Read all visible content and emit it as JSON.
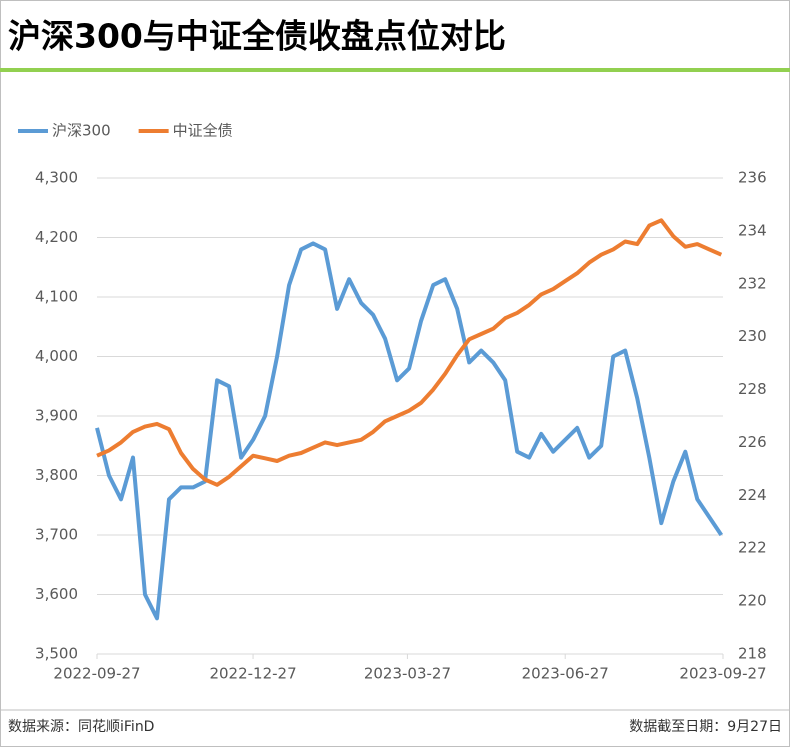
{
  "chart_data": {
    "type": "line",
    "title": "沪深300与中证全债收盘点位对比",
    "source": "数据来源：同花顺iFinD",
    "note": "数据截至日期：9月27日",
    "x": [
      "2022-09-27",
      "2022-10-04",
      "2022-10-11",
      "2022-10-18",
      "2022-10-25",
      "2022-11-01",
      "2022-11-08",
      "2022-11-15",
      "2022-11-22",
      "2022-11-29",
      "2022-12-06",
      "2022-12-13",
      "2022-12-20",
      "2022-12-27",
      "2023-01-03",
      "2023-01-10",
      "2023-01-17",
      "2023-01-24",
      "2023-01-31",
      "2023-02-07",
      "2023-02-14",
      "2023-02-21",
      "2023-02-28",
      "2023-03-07",
      "2023-03-14",
      "2023-03-21",
      "2023-03-28",
      "2023-04-04",
      "2023-04-11",
      "2023-04-18",
      "2023-04-25",
      "2023-05-02",
      "2023-05-09",
      "2023-05-16",
      "2023-05-23",
      "2023-05-30",
      "2023-06-06",
      "2023-06-13",
      "2023-06-20",
      "2023-06-27",
      "2023-07-04",
      "2023-07-11",
      "2023-07-18",
      "2023-07-25",
      "2023-08-01",
      "2023-08-08",
      "2023-08-15",
      "2023-08-22",
      "2023-08-29",
      "2023-09-05",
      "2023-09-12",
      "2023-09-19",
      "2023-09-26"
    ],
    "series": [
      {
        "name": "沪深300",
        "color": "#5b9bd5",
        "values": [
          3880,
          3800,
          3760,
          3830,
          3600,
          3560,
          3760,
          3780,
          3780,
          3790,
          3960,
          3950,
          3830,
          3860,
          3900,
          4000,
          4120,
          4180,
          4190,
          4180,
          4080,
          4130,
          4090,
          4070,
          4030,
          3960,
          3980,
          4060,
          4120,
          4130,
          4080,
          3990,
          4010,
          3990,
          3960,
          3840,
          3830,
          3870,
          3840,
          3860,
          3880,
          3830,
          3850,
          4000,
          4010,
          3930,
          3830,
          3720,
          3790,
          3840,
          3760,
          3730,
          3700
        ]
      },
      {
        "name": "中证全债",
        "color": "#ed7d31",
        "axis": "y2",
        "values": [
          225.5,
          225.7,
          226.0,
          226.4,
          226.6,
          226.7,
          226.5,
          225.6,
          225.0,
          224.6,
          224.4,
          224.7,
          225.1,
          225.5,
          225.4,
          225.3,
          225.5,
          225.6,
          225.8,
          226.0,
          225.9,
          226.0,
          226.1,
          226.4,
          226.8,
          227.0,
          227.2,
          227.5,
          228.0,
          228.6,
          229.3,
          229.9,
          230.1,
          230.3,
          230.7,
          230.9,
          231.2,
          231.6,
          231.8,
          232.1,
          232.4,
          232.8,
          233.1,
          233.3,
          233.6,
          233.5,
          234.2,
          234.4,
          233.8,
          233.4,
          233.5,
          233.3,
          233.1
        ]
      }
    ],
    "xlim": [
      "2022-09-27",
      "2023-09-27"
    ],
    "xticks": [
      "2022-09-27",
      "2022-12-27",
      "2023-03-27",
      "2023-06-27",
      "2023-09-27"
    ],
    "ylim": [
      3500,
      4300
    ],
    "yticks": [
      {
        "value": 3500,
        "label": "3,500"
      },
      {
        "value": 3600,
        "label": "3,600"
      },
      {
        "value": 3700,
        "label": "3,700"
      },
      {
        "value": 3800,
        "label": "3,800"
      },
      {
        "value": 3900,
        "label": "3,900"
      },
      {
        "value": 4000,
        "label": "4,000"
      },
      {
        "value": 4100,
        "label": "4,100"
      },
      {
        "value": 4200,
        "label": "4,200"
      },
      {
        "value": 4300,
        "label": "4,300"
      }
    ],
    "y2lim": [
      218,
      236
    ],
    "y2ticks": [
      218,
      220,
      222,
      224,
      226,
      228,
      230,
      232,
      234,
      236
    ],
    "grid": true
  }
}
